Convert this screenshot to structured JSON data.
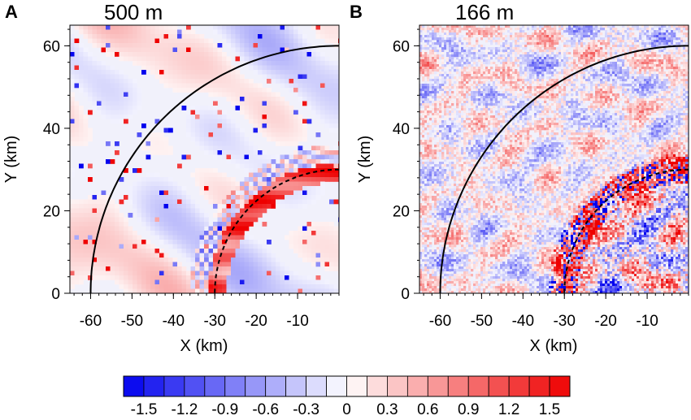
{
  "chart_data": [
    {
      "type": "heatmap",
      "panel_letter": "A",
      "title": "500 m",
      "xlabel": "X (km)",
      "ylabel": "Y (km)",
      "xlim": [
        -65,
        0
      ],
      "ylim": [
        0,
        65
      ],
      "x_ticks": [
        -60,
        -50,
        -40,
        -30,
        -20,
        -10
      ],
      "y_ticks": [
        0,
        20,
        40,
        60
      ],
      "x_tick_labels": [
        "-60",
        "-50",
        "-40",
        "-30",
        "-20",
        "-10"
      ],
      "y_tick_labels": [
        "0",
        "20",
        "40",
        "60"
      ],
      "grid": false,
      "field": "perturbation field, smooth streaks (coarse grid)",
      "overlay_arcs": [
        {
          "style": "solid",
          "radius_km": 60
        },
        {
          "style": "dashed",
          "radius_km": 30
        }
      ],
      "band": {
        "near_radius_km": 30,
        "sign": "positive"
      }
    },
    {
      "type": "heatmap",
      "panel_letter": "B",
      "title": "166 m",
      "xlabel": "X (km)",
      "ylabel": "Y (km)",
      "xlim": [
        -65,
        0
      ],
      "ylim": [
        0,
        65
      ],
      "x_ticks": [
        -60,
        -50,
        -40,
        -30,
        -20,
        -10
      ],
      "y_ticks": [
        0,
        20,
        40,
        60
      ],
      "x_tick_labels": [
        "-60",
        "-50",
        "-40",
        "-30",
        "-20",
        "-10"
      ],
      "y_tick_labels": [
        "0",
        "20",
        "40",
        "60"
      ],
      "grid": false,
      "field": "perturbation field, fine-scale turbulent streaks",
      "overlay_arcs": [
        {
          "style": "solid",
          "radius_km": 60
        },
        {
          "style": "dashed",
          "radius_km": 30
        }
      ],
      "band": {
        "near_radius_km": 30,
        "sign": "mixed"
      }
    }
  ],
  "colorbar": {
    "min": -1.65,
    "max": 1.65,
    "n_bins": 22,
    "tick_values": [
      -1.5,
      -1.2,
      -0.9,
      -0.6,
      -0.3,
      0,
      0.3,
      0.6,
      0.9,
      1.2,
      1.5
    ],
    "tick_labels": [
      "-1.5",
      "-1.2",
      "-0.9",
      "-0.6",
      "-0.3",
      "0",
      "0.3",
      "0.6",
      "0.9",
      "1.2",
      "1.5"
    ],
    "colors": {
      "negative": "#0000ee",
      "neutral": "#ffffff",
      "positive": "#ee0000"
    }
  }
}
